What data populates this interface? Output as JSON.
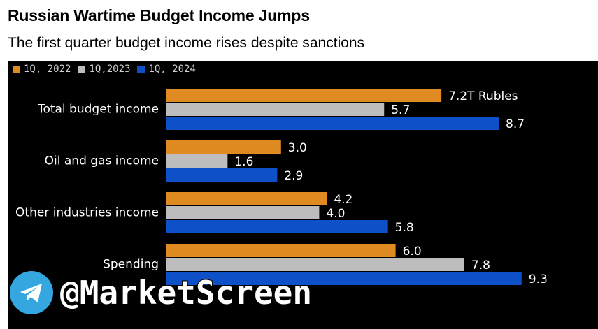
{
  "title": "Russian Wartime Budget Income Jumps",
  "subtitle": "The first quarter budget income rises despite sanctions",
  "watermark": "@MarketScreen",
  "colors": {
    "series_2022": "#e08a22",
    "series_2023": "#bdbdbd",
    "series_2024": "#0e50c8",
    "background": "#000000",
    "label_text": "#ffffff"
  },
  "chart_data": {
    "type": "bar",
    "orientation": "horizontal",
    "title": "Russian Wartime Budget Income Jumps",
    "subtitle": "The first quarter budget income rises despite sanctions",
    "categories": [
      "Total budget income",
      "Oil and gas income",
      "Other industries income",
      "Spending"
    ],
    "series": [
      {
        "name": "1Q, 2022",
        "values": [
          7.2,
          3.0,
          4.2,
          6.0
        ]
      },
      {
        "name": "1Q,2023",
        "values": [
          5.7,
          1.6,
          4.0,
          7.8
        ]
      },
      {
        "name": "1Q, 2024",
        "values": [
          8.7,
          2.9,
          5.8,
          9.3
        ]
      }
    ],
    "data_labels": [
      [
        "7.2T Rubles",
        "3.0",
        "4.2",
        "6.0"
      ],
      [
        "5.7",
        "1.6",
        "4.0",
        "7.8"
      ],
      [
        "8.7",
        "2.9",
        "5.8",
        "9.3"
      ]
    ],
    "unit": "T Rubles",
    "xlim": [
      0,
      10
    ],
    "legend_position": "top-left",
    "grid": false
  }
}
